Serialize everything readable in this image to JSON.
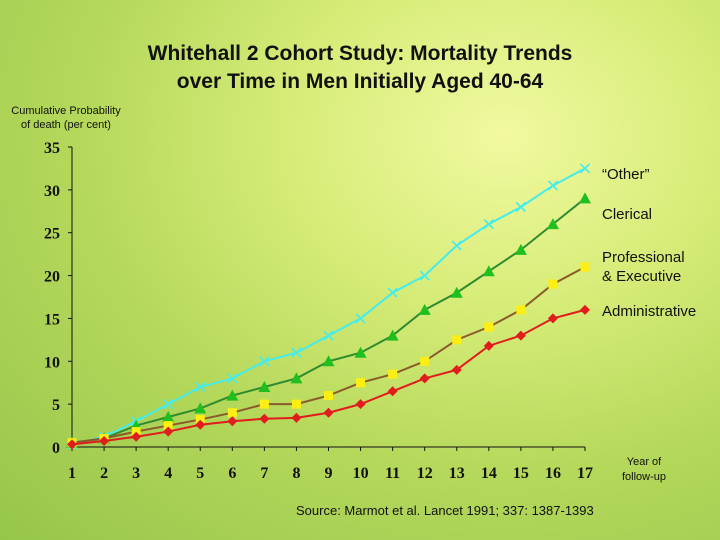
{
  "title_lines": [
    "Whitehall 2 Cohort Study: Mortality Trends",
    "over Time in Men Initially Aged 40-64"
  ],
  "ylabel_lines": [
    "Cumulative Probability",
    "of death (per cent)"
  ],
  "xlabel_lines": [
    "Year of",
    "follow-up"
  ],
  "source": "Source: Marmot et al.  Lancet 1991; 337: 1387-1393",
  "chart_data": {
    "type": "line",
    "title": "Whitehall 2 Cohort Study: Mortality Trends over Time in Men Initially Aged 40-64",
    "xlabel": "Year of follow-up",
    "ylabel": "Cumulative Probability of death (per cent)",
    "x": [
      1,
      2,
      3,
      4,
      5,
      6,
      7,
      8,
      9,
      10,
      11,
      12,
      13,
      14,
      15,
      16,
      17
    ],
    "xlim": [
      1,
      17
    ],
    "ylim": [
      0,
      35
    ],
    "yticks": [
      0,
      5,
      10,
      15,
      20,
      25,
      30,
      35
    ],
    "grid": false,
    "legend": "direct labels at right",
    "series": [
      {
        "name": "“Other”",
        "color": "#44ecec",
        "line_color": "#44ecec",
        "marker": "x",
        "values": [
          0.3,
          1.2,
          3.0,
          5.0,
          7.0,
          8.0,
          10.0,
          11.0,
          13.0,
          15.0,
          18.0,
          20.0,
          23.5,
          26.0,
          28.0,
          30.5,
          32.5
        ]
      },
      {
        "name": "Clerical",
        "color": "#1fbf1f",
        "line_color": "#2e8b2e",
        "marker": "triangle",
        "values": [
          0.5,
          1.0,
          2.5,
          3.5,
          4.5,
          6.0,
          7.0,
          8.0,
          10.0,
          11.0,
          13.0,
          16.0,
          18.0,
          20.5,
          23.0,
          26.0,
          29.0
        ]
      },
      {
        "name": "Professional & Executive",
        "color": "#ffee11",
        "line_color": "#8b5a2b",
        "marker": "square",
        "values": [
          0.5,
          1.0,
          1.8,
          2.5,
          3.2,
          4.0,
          5.0,
          5.0,
          6.0,
          7.5,
          8.5,
          10.0,
          12.5,
          14.0,
          16.0,
          19.0,
          21.0
        ]
      },
      {
        "name": "Administrative",
        "color": "#e01c1c",
        "line_color": "#e01c1c",
        "marker": "diamond",
        "values": [
          0.3,
          0.7,
          1.2,
          1.8,
          2.6,
          3.0,
          3.3,
          3.4,
          4.0,
          5.0,
          6.5,
          8.0,
          9.0,
          11.8,
          13.0,
          15.0,
          16.0
        ]
      }
    ],
    "series_label_lines": [
      [
        "“Other”"
      ],
      [
        "Clerical"
      ],
      [
        "Professional",
        "& Executive"
      ],
      [
        "Administrative"
      ]
    ]
  }
}
